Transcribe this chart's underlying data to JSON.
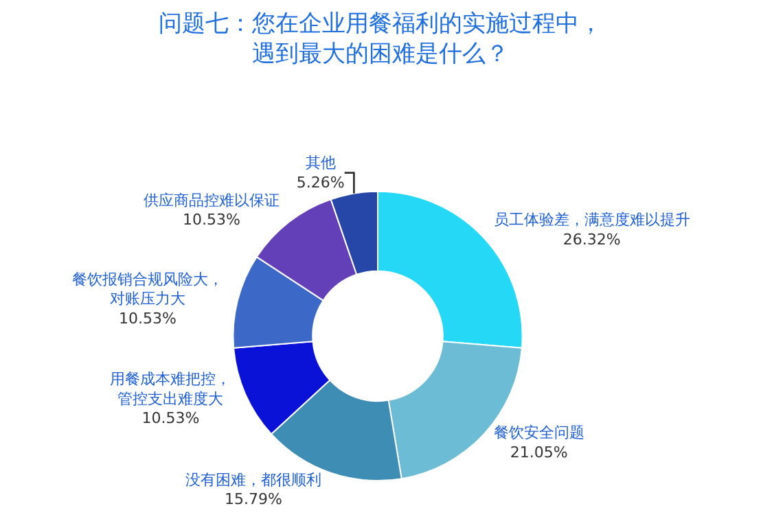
{
  "chart_data": {
    "type": "donut",
    "title": "问题七：您在企业用餐福利的实施过程中，遇到最大的困难是什么？",
    "categories": [
      "员工体验差，满意度难以提升",
      "餐饮安全问题",
      "没有困难，都很顺利",
      "用餐成本难把控，管控支出难度大",
      "餐饮报销合规风险大，对账压力大",
      "供应商品控难以保证",
      "其他"
    ],
    "values": [
      26.32,
      21.05,
      15.79,
      10.53,
      10.53,
      10.53,
      5.26
    ],
    "value_labels": [
      "26.32%",
      "21.05%",
      "15.79%",
      "10.53%",
      "10.53%",
      "10.53%",
      "5.26%"
    ],
    "colors": [
      "#25d8f5",
      "#6cbcd6",
      "#3d8db5",
      "#0b12d8",
      "#3c68c8",
      "#6440b8",
      "#2747a8"
    ],
    "legend": false
  }
}
